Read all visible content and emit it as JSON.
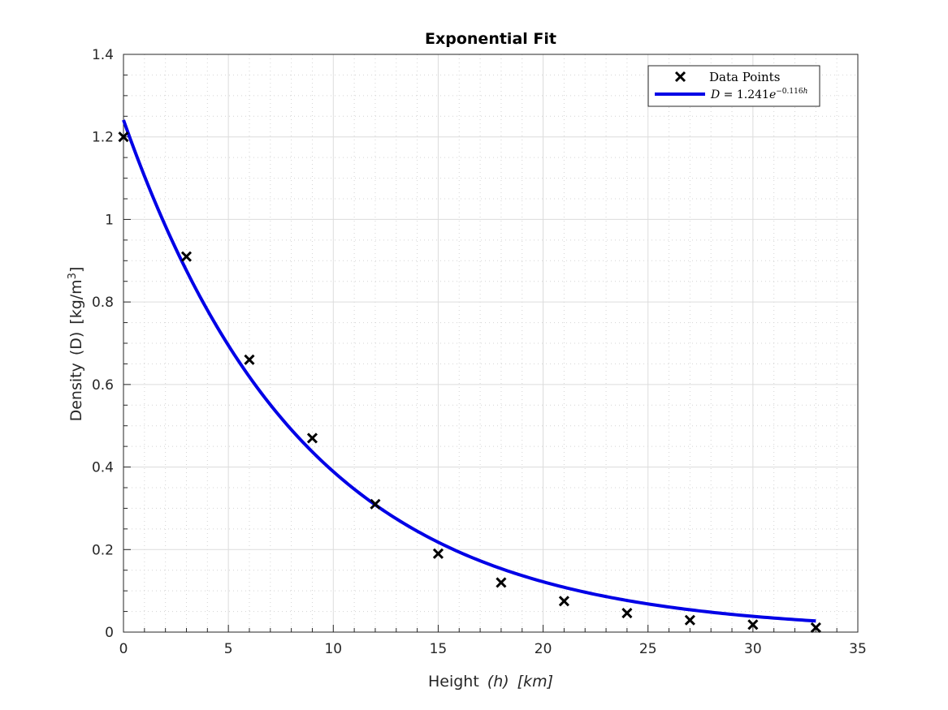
{
  "chart_data": {
    "type": "scatter",
    "title": "Exponential Fit",
    "xlabel": {
      "main": "Height",
      "symbol": "(h)",
      "unit": "[km]"
    },
    "ylabel": {
      "main": "Density",
      "symbol": "(D)",
      "unit_base": "[kg/m",
      "unit_exp": "3",
      "unit_close": "]"
    },
    "xlim": [
      0,
      35
    ],
    "ylim": [
      0,
      1.4
    ],
    "xticks": [
      0,
      5,
      10,
      15,
      20,
      25,
      30,
      35
    ],
    "xtick_labels": [
      "0",
      "5",
      "10",
      "15",
      "20",
      "25",
      "30",
      "35"
    ],
    "yticks": [
      0,
      0.2,
      0.4,
      0.6,
      0.8,
      1.0,
      1.2,
      1.4
    ],
    "ytick_labels": [
      "0",
      "0.2",
      "0.4",
      "0.6",
      "0.8",
      "1",
      "1.2",
      "1.4"
    ],
    "grid": "major and minor",
    "legend_position": "top-right",
    "series": [
      {
        "name": "Data Points",
        "kind": "scatter",
        "marker": "x",
        "color": "#000000",
        "x": [
          0,
          3,
          6,
          9,
          12,
          15,
          18,
          21,
          24,
          27,
          30,
          33
        ],
        "y": [
          1.2,
          0.91,
          0.66,
          0.47,
          0.31,
          0.19,
          0.12,
          0.075,
          0.046,
          0.029,
          0.018,
          0.011
        ]
      },
      {
        "name": "D = 1.241e^{-0.116h}",
        "kind": "line",
        "color": "#0000e6",
        "model": {
          "amplitude": 1.241,
          "rate": -0.116
        },
        "x_range": [
          0,
          33
        ]
      }
    ],
    "legend": {
      "points_label": "Data Points",
      "fit_lhs": "D",
      "fit_eq": " = 1.241",
      "fit_base": "e",
      "fit_exp_num": "−0.116",
      "fit_exp_var": "h"
    }
  }
}
